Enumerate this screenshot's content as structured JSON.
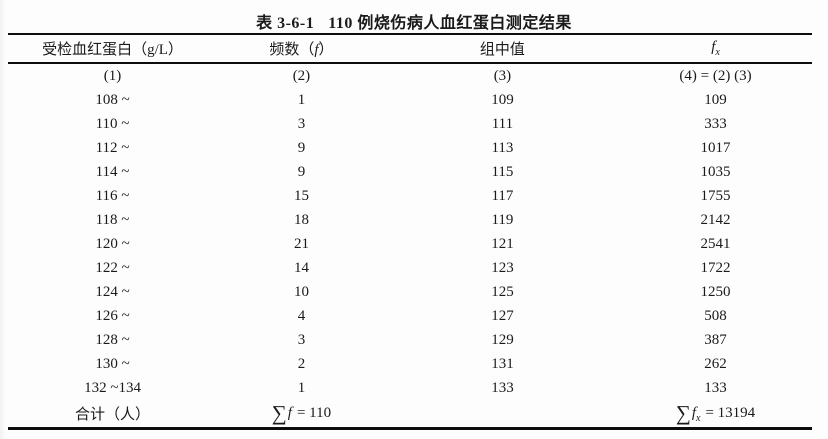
{
  "colors": {
    "background": "#fdfdfd",
    "text": "#1a1a1a",
    "rule": "#0d0d0d"
  },
  "title": {
    "number": "表 3-6-1",
    "text": "110 例烧伤病人血红蛋白测定结果"
  },
  "table": {
    "headers": {
      "col1": "受检血红蛋白（g/L）",
      "col2_pre": "频数（",
      "col2_var": "f",
      "col2_post": "）",
      "col3": "组中值",
      "col4_var": "f",
      "col4_sub": "x"
    },
    "numbering_row": {
      "c1": "(1)",
      "c2": "(2)",
      "c3": "(3)",
      "c4": "(4) = (2) (3)"
    },
    "rows": [
      [
        "108 ~",
        "1",
        "109",
        "109"
      ],
      [
        "110 ~",
        "3",
        "111",
        "333"
      ],
      [
        "112 ~",
        "9",
        "113",
        "1017"
      ],
      [
        "114 ~",
        "9",
        "115",
        "1035"
      ],
      [
        "116 ~",
        "15",
        "117",
        "1755"
      ],
      [
        "118 ~",
        "18",
        "119",
        "2142"
      ],
      [
        "120 ~",
        "21",
        "121",
        "2541"
      ],
      [
        "122 ~",
        "14",
        "123",
        "1722"
      ],
      [
        "124 ~",
        "10",
        "125",
        "1250"
      ],
      [
        "126 ~",
        "4",
        "127",
        "508"
      ],
      [
        "128 ~",
        "3",
        "129",
        "387"
      ],
      [
        "130 ~",
        "2",
        "131",
        "262"
      ],
      [
        "132 ~134",
        "1",
        "133",
        "133"
      ]
    ],
    "total_row": {
      "label": "合计（人）",
      "sum_f_sigma": "∑",
      "sum_f_var": "f",
      "sum_f_value": "= 110",
      "sum_fx_sigma": "∑",
      "sum_fx_var": "f",
      "sum_fx_sub": "x",
      "sum_fx_value": "= 13194"
    }
  }
}
